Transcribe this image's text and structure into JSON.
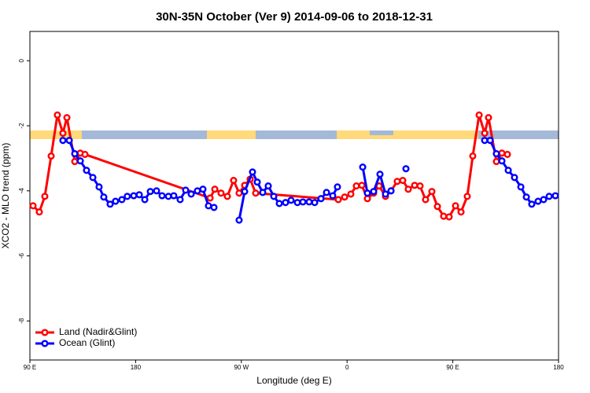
{
  "chart_data": {
    "type": "line",
    "title": "30N-35N October (Ver 9)   2014-09-06 to 2018-12-31",
    "x_label": "Longitude (deg E)",
    "y_label": "XCO2 - MLO trend (ppm)",
    "xlim": [
      90,
      540
    ],
    "ylim": [
      -9.2,
      0.9
    ],
    "xticks": [
      {
        "value": 90,
        "label": "90 E"
      },
      180,
      {
        "value": 270,
        "label": "90 W"
      },
      {
        "value": 360,
        "label": "0"
      },
      {
        "value": 450,
        "label": "90 E"
      },
      {
        "value": 540,
        "label": "180"
      }
    ],
    "yticks": [
      -8,
      -6,
      -4,
      -2,
      0
    ],
    "legend": "bottom-left",
    "series": [
      {
        "name": "Land (Nadir&Glint)",
        "color": "#ff0000",
        "x": [
          92.7,
          98.0,
          102.7,
          108.1,
          113.4,
          118.1,
          121.5,
          128.2,
          132.9,
          136.9,
          243.4,
          247.4,
          252.7,
          258.1,
          263.4,
          268.1,
          272.8,
          277.5,
          282.2,
          352.5,
          357.9,
          363.2,
          367.9,
          372.6,
          377.3,
          382.6,
          387.3,
          392.7,
          397.4,
          402.7,
          407.4,
          412.1,
          417.5,
          422.1,
          426.8,
          432.2,
          436.9,
          442.2,
          446.9,
          452.3,
          457.0,
          462.3,
          467.0,
          472.4,
          477.1,
          480.4,
          487.1,
          491.8,
          496.5
        ],
        "values": [
          -4.46,
          -4.65,
          -4.17,
          -2.93,
          -1.67,
          -2.23,
          -1.75,
          -3.1,
          -2.84,
          -2.88,
          -4.22,
          -3.95,
          -4.07,
          -4.17,
          -3.68,
          -4.07,
          -3.83,
          -3.64,
          -4.07,
          -4.27,
          -4.19,
          -4.1,
          -3.85,
          -3.83,
          -4.24,
          -4.07,
          -3.85,
          -4.17,
          -4.0,
          -3.71,
          -3.68,
          -3.95,
          -3.83,
          -3.85,
          -4.27,
          -4.02,
          -4.48,
          -4.78,
          -4.8,
          -4.46,
          -4.65,
          -4.17,
          -2.93,
          -1.67,
          -2.23,
          -1.75,
          -3.1,
          -2.84,
          -2.88
        ]
      },
      {
        "name": "Ocean (Glint)",
        "color": "#0000ff",
        "x": [
          118.1,
          123.5,
          128.2,
          132.9,
          138.2,
          143.6,
          148.9,
          152.9,
          158.3,
          162.9,
          168.3,
          172.9,
          178.4,
          183.1,
          187.8,
          192.5,
          197.8,
          202.5,
          207.9,
          212.5,
          217.9,
          222.6,
          227.3,
          232.6,
          237.3,
          242.0,
          246.7,
          257.0,
          268.1,
          272.8,
          279.5,
          283.5,
          288.2,
          292.9,
          297.6,
          302.3,
          307.6,
          312.3,
          317.7,
          322.4,
          327.7,
          332.4,
          337.8,
          342.5,
          347.8,
          351.8,
          362.0,
          373.3,
          377.3,
          382.6,
          388.0,
          392.7,
          397.4,
          404.0,
          410.1,
          440.0,
          477.1,
          481.8,
          487.1,
          491.8,
          497.2,
          502.5,
          507.9,
          512.6,
          517.2,
          522.6,
          527.3,
          532.0,
          537.3
        ],
        "values": [
          -2.45,
          -2.45,
          -2.86,
          -3.08,
          -3.37,
          -3.59,
          -3.88,
          -4.19,
          -4.41,
          -4.32,
          -4.27,
          -4.17,
          -4.15,
          -4.12,
          -4.27,
          -4.02,
          -4.0,
          -4.15,
          -4.17,
          -4.15,
          -4.27,
          -3.98,
          -4.1,
          -4.0,
          -3.95,
          -4.46,
          -4.51,
          null,
          -4.9,
          -4.02,
          -3.42,
          -3.73,
          -4.05,
          -3.85,
          -4.17,
          -4.39,
          -4.36,
          -4.29,
          -4.36,
          -4.34,
          -4.34,
          -4.36,
          -4.24,
          -4.05,
          -4.15,
          -3.88,
          null,
          -3.27,
          -4.07,
          -4.02,
          -3.49,
          -4.1,
          -4.0,
          null,
          -3.32,
          null,
          -2.45,
          -2.45,
          -2.86,
          -3.08,
          -3.37,
          -3.59,
          -3.88,
          -4.19,
          -4.41,
          -4.32,
          -4.27,
          -4.17,
          -4.15
        ]
      }
    ]
  }
}
